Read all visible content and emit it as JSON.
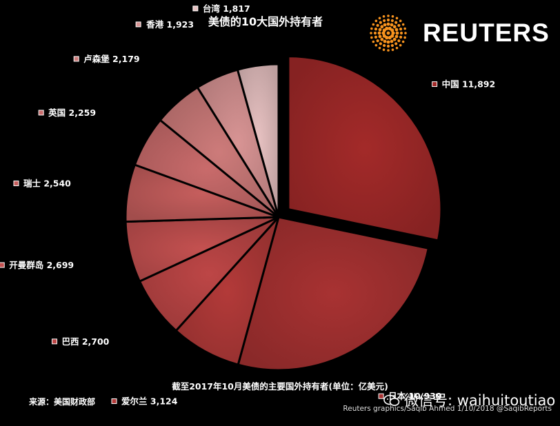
{
  "chart_data": {
    "type": "pie",
    "title": "美债的10大国外持有者",
    "subtitle": "截至2017年10月美债的主要国外持有者(单位：亿美元)",
    "categories": [
      "中国",
      "日本",
      "爱尔兰",
      "巴西",
      "开曼群岛",
      "瑞士",
      "英国",
      "卢森堡",
      "香港",
      "台湾"
    ],
    "values": [
      11892,
      10939,
      3124,
      2700,
      2699,
      2540,
      2259,
      2179,
      1923,
      1817
    ],
    "value_labels": [
      "11,892",
      "10,939",
      "3,124",
      "2,700",
      "2,699",
      "2,540",
      "2,259",
      "2,179",
      "1,923",
      "1,817"
    ],
    "colors": [
      "#a32a29",
      "#a83232",
      "#b33a39",
      "#bd4646",
      "#c45150",
      "#c65e5d",
      "#c96b6b",
      "#cd7b7a",
      "#d89494",
      "#e8c2c2"
    ],
    "exploded": [
      "中国"
    ],
    "legend": "none"
  },
  "brand": {
    "name": "REUTERS",
    "logo_color": "#f7931e"
  },
  "source": "来源：美国财政部",
  "watermark": "微信号: waihuitoutiao",
  "credit": "Reuters graphics/Saqib Ahmed 1/10/2018 @SaqibReports"
}
